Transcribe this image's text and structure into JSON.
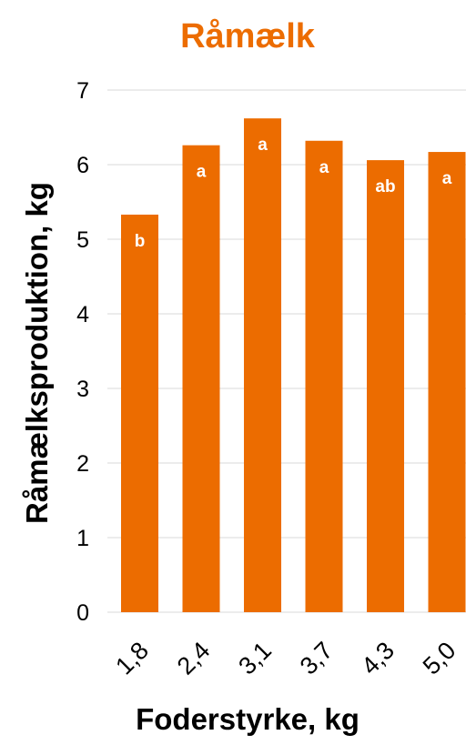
{
  "colors": {
    "bar": "#EC6C00",
    "title": "#EC6C00",
    "grid": "#D9D9D9"
  },
  "chart_data": {
    "type": "bar",
    "title": "Råmælk",
    "xlabel": "Foderstyrke, kg",
    "ylabel": "Råmælksproduktion, kg",
    "categories": [
      "1,8",
      "2,4",
      "3,1",
      "3,7",
      "4,3",
      "5,0"
    ],
    "values": [
      5.33,
      6.26,
      6.62,
      6.32,
      6.06,
      6.17
    ],
    "bar_labels": [
      "b",
      "a",
      "a",
      "a",
      "ab",
      "a"
    ],
    "ylim": [
      0,
      7
    ],
    "yticks": [
      "0",
      "1",
      "2",
      "3",
      "4",
      "5",
      "6",
      "7"
    ],
    "grid": true,
    "legend": "none"
  }
}
